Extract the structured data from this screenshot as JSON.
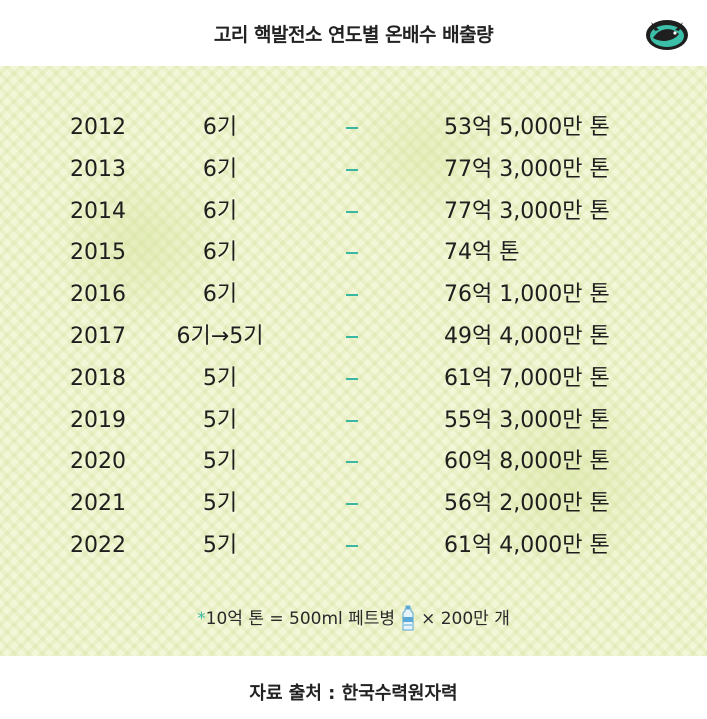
{
  "header": {
    "title": "고리 핵발전소 연도별 온배수 배출량"
  },
  "rows": [
    {
      "year": "2012",
      "units": "6기",
      "amount": "53억 5,000만 톤"
    },
    {
      "year": "2013",
      "units": "6기",
      "amount": "77억 3,000만 톤"
    },
    {
      "year": "2014",
      "units": "6기",
      "amount": "77억 3,000만 톤"
    },
    {
      "year": "2015",
      "units": "6기",
      "amount": "74억 톤"
    },
    {
      "year": "2016",
      "units": "6기",
      "amount": "76억 1,000만 톤"
    },
    {
      "year": "2017",
      "units": "6기→5기",
      "amount": "49억 4,000만 톤"
    },
    {
      "year": "2018",
      "units": "5기",
      "amount": "61억 7,000만 톤"
    },
    {
      "year": "2019",
      "units": "5기",
      "amount": "55억 3,000만 톤"
    },
    {
      "year": "2020",
      "units": "5기",
      "amount": "60억 8,000만 톤"
    },
    {
      "year": "2021",
      "units": "5기",
      "amount": "56억 2,000만 톤"
    },
    {
      "year": "2022",
      "units": "5기",
      "amount": "61억 4,000만 톤"
    }
  ],
  "footnote": {
    "star": "*",
    "text_before": "10억 톤 = 500ml 페트병",
    "text_after": "× 200만 개"
  },
  "footer": {
    "source": "자료 출처 : 한국수력원자력"
  },
  "colors": {
    "accent": "#39b7a3",
    "panel_bg": "#f3f7d8"
  },
  "icons": {
    "logo": "bird-logo-icon",
    "bottle": "pet-bottle-icon"
  }
}
